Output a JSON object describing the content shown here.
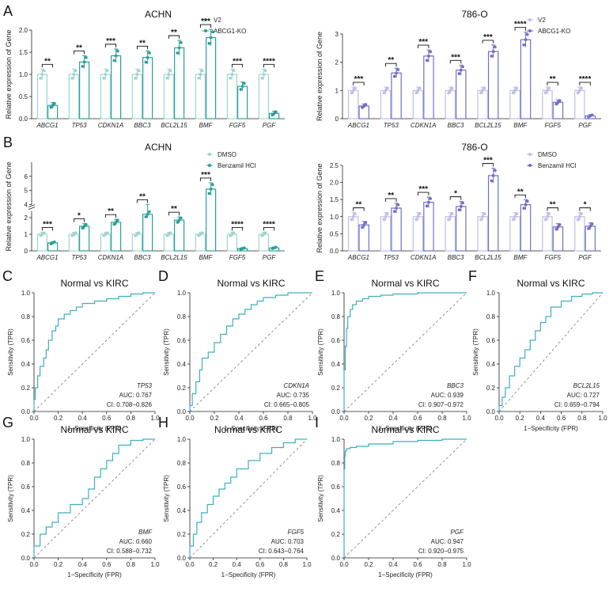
{
  "figure": {
    "rows": {
      "A": [
        {
          "letter": "A",
          "title": "ACHN",
          "ylabel": "Relative expression of Gene",
          "ylim": [
            0,
            2.0
          ],
          "yticks": [
            "0.0",
            "0.5",
            "1.0",
            "1.5",
            "2.0"
          ],
          "color": "#2aa198",
          "legend": [
            "V2",
            "ABCG1-KO"
          ],
          "chart_data": {
            "type": "bar",
            "categories": [
              "ABCG1",
              "TP53",
              "CDKN1A",
              "BBC3",
              "BCL2L15",
              "BMF",
              "FGF5",
              "PGF"
            ],
            "series": [
              {
                "name": "V2",
                "values": [
                  1,
                  1,
                  1,
                  1,
                  1,
                  1,
                  1,
                  1
                ]
              },
              {
                "name": "ABCG1-KO",
                "values": [
                  0.3,
                  1.28,
                  1.42,
                  1.38,
                  1.6,
                  1.83,
                  0.73,
                  0.12
                ]
              }
            ],
            "significance": [
              "**",
              "**",
              "***",
              "**",
              "**",
              "***",
              "***",
              "****"
            ]
          }
        },
        {
          "letter": "",
          "title": "786-O",
          "ylabel": "Relative expression of Gene",
          "ylim": [
            0,
            3
          ],
          "yticks": [
            "0",
            "1",
            "2",
            "3"
          ],
          "color": "#6f6fc8",
          "legend": [
            "V2",
            "ABCG1-KO"
          ],
          "chart_data": {
            "type": "bar",
            "categories": [
              "ABCG1",
              "TP53",
              "CDKN1A",
              "BBC3",
              "BCL2L15",
              "BMF",
              "FGF5",
              "PGF"
            ],
            "series": [
              {
                "name": "V2",
                "values": [
                  1,
                  1,
                  1,
                  1,
                  1,
                  1,
                  1,
                  1
                ]
              },
              {
                "name": "ABCG1-KO",
                "values": [
                  0.45,
                  1.62,
                  2.22,
                  1.72,
                  2.38,
                  2.8,
                  0.58,
                  0.1
                ]
              }
            ],
            "significance": [
              "***",
              "**",
              "***",
              "***",
              "***",
              "****",
              "**",
              "****"
            ]
          }
        }
      ],
      "B": [
        {
          "letter": "B",
          "title": "ACHN",
          "ylabel": "Relative expression of Gene",
          "broken_axis": true,
          "ylim_lower": [
            0,
            2.4
          ],
          "ylim_upper": [
            4,
            7
          ],
          "yticks": [
            "0",
            "1",
            "2",
            "4",
            "5",
            "6"
          ],
          "color": "#2aa198",
          "legend": [
            "DMSO",
            "Benzamil HCl"
          ],
          "chart_data": {
            "type": "bar",
            "categories": [
              "ABCG1",
              "TP53",
              "CDKN1A",
              "BBC3",
              "BCL2L15",
              "BMF",
              "FGF5",
              "PGF"
            ],
            "series": [
              {
                "name": "DMSO",
                "values": [
                  1,
                  1,
                  1,
                  1,
                  1,
                  1,
                  1,
                  1
                ]
              },
              {
                "name": "Benzamil HCl",
                "values": [
                  0.48,
                  1.48,
                  1.72,
                  2.2,
                  1.85,
                  5.1,
                  0.14,
                  0.18
                ]
              }
            ],
            "significance": [
              "***",
              "*",
              "**",
              "**",
              "**",
              "***",
              "****",
              "****"
            ]
          }
        },
        {
          "letter": "",
          "title": "786-O",
          "ylabel": "Relative expression of Gene",
          "ylim": [
            0,
            2.5
          ],
          "yticks": [
            "0.0",
            "0.5",
            "1.0",
            "1.5",
            "2.0",
            "2.5"
          ],
          "color": "#6f6fc8",
          "legend": [
            "DMSO",
            "Benzamil HCl"
          ],
          "chart_data": {
            "type": "bar",
            "categories": [
              "ABCG1",
              "TP53",
              "CDKN1A",
              "BBC3",
              "BCL2L15",
              "BMF",
              "FGF5",
              "PGF"
            ],
            "series": [
              {
                "name": "DMSO",
                "values": [
                  1,
                  1,
                  1,
                  1,
                  1,
                  1,
                  1,
                  1
                ]
              },
              {
                "name": "Benzamil HCl",
                "values": [
                  0.76,
                  1.25,
                  1.42,
                  1.3,
                  2.2,
                  1.35,
                  0.7,
                  0.72
                ]
              }
            ],
            "significance": [
              "**",
              "**",
              "***",
              "*",
              "***",
              "**",
              "**",
              "*"
            ]
          }
        }
      ]
    },
    "roc": {
      "title": "Normal vs KIRC",
      "xlabel": "1−Specificity (FPR)",
      "ylabel": "Sensitivity (TPR)",
      "ticks": [
        "0.0",
        "0.2",
        "0.4",
        "0.6",
        "0.8",
        "1.0"
      ],
      "color": "#3bb0c0",
      "panels": [
        {
          "letter": "C",
          "gene": "TP53",
          "auc": "AUC: 0.767",
          "ci": "CI: 0.708−0.826",
          "chart_data": {
            "type": "line",
            "x": [
              0,
              0.01,
              0.03,
              0.05,
              0.08,
              0.1,
              0.12,
              0.15,
              0.18,
              0.2,
              0.25,
              0.3,
              0.35,
              0.4,
              0.5,
              0.6,
              0.7,
              0.8,
              0.9,
              1.0
            ],
            "y": [
              0,
              0.1,
              0.2,
              0.3,
              0.38,
              0.45,
              0.52,
              0.6,
              0.68,
              0.72,
              0.78,
              0.82,
              0.85,
              0.88,
              0.91,
              0.93,
              0.95,
              0.97,
              0.99,
              1.0
            ]
          }
        },
        {
          "letter": "D",
          "gene": "CDKN1A",
          "auc": "AUC: 0.735",
          "ci": "CI: 0.665−0.805",
          "chart_data": {
            "type": "line",
            "x": [
              0,
              0.02,
              0.05,
              0.08,
              0.1,
              0.15,
              0.2,
              0.25,
              0.3,
              0.35,
              0.4,
              0.45,
              0.5,
              0.55,
              0.6,
              0.7,
              0.8,
              0.9,
              1.0
            ],
            "y": [
              0,
              0.05,
              0.15,
              0.25,
              0.35,
              0.45,
              0.5,
              0.58,
              0.65,
              0.72,
              0.78,
              0.82,
              0.86,
              0.9,
              0.93,
              0.96,
              0.98,
              1.0,
              1.0
            ]
          }
        },
        {
          "letter": "E",
          "gene": "BBC3",
          "auc": "AUC: 0.939",
          "ci": "CI: 0.907−0.972",
          "chart_data": {
            "type": "line",
            "x": [
              0,
              0.01,
              0.02,
              0.03,
              0.05,
              0.07,
              0.1,
              0.15,
              0.2,
              0.3,
              0.4,
              0.5,
              0.6,
              0.8,
              1.0
            ],
            "y": [
              0,
              0.35,
              0.55,
              0.7,
              0.8,
              0.86,
              0.9,
              0.93,
              0.95,
              0.97,
              0.98,
              0.99,
              0.99,
              1.0,
              1.0
            ]
          }
        },
        {
          "letter": "F",
          "gene": "BCL2L15",
          "auc": "AUC: 0.727",
          "ci": "CI: 0.659−0.794",
          "chart_data": {
            "type": "line",
            "x": [
              0,
              0.03,
              0.06,
              0.1,
              0.15,
              0.2,
              0.25,
              0.3,
              0.35,
              0.4,
              0.45,
              0.5,
              0.6,
              0.7,
              0.8,
              0.9,
              1.0
            ],
            "y": [
              0,
              0.05,
              0.12,
              0.2,
              0.3,
              0.38,
              0.45,
              0.52,
              0.6,
              0.68,
              0.75,
              0.8,
              0.88,
              0.93,
              0.97,
              0.99,
              1.0
            ]
          }
        },
        {
          "letter": "G",
          "gene": "BMF",
          "auc": "AUC: 0.660",
          "ci": "CI: 0.588−0.732",
          "chart_data": {
            "type": "line",
            "x": [
              0,
              0.05,
              0.1,
              0.15,
              0.2,
              0.3,
              0.4,
              0.45,
              0.5,
              0.55,
              0.6,
              0.65,
              0.7,
              0.8,
              0.9,
              1.0
            ],
            "y": [
              0,
              0.1,
              0.2,
              0.26,
              0.3,
              0.38,
              0.45,
              0.5,
              0.58,
              0.68,
              0.75,
              0.82,
              0.88,
              0.95,
              0.99,
              1.0
            ]
          }
        },
        {
          "letter": "H",
          "gene": "FGF5",
          "auc": "AUC: 0.703",
          "ci": "CI: 0.643−0.764",
          "chart_data": {
            "type": "line",
            "x": [
              0,
              0.03,
              0.06,
              0.1,
              0.15,
              0.2,
              0.25,
              0.3,
              0.35,
              0.4,
              0.5,
              0.6,
              0.7,
              0.8,
              0.9,
              1.0
            ],
            "y": [
              0,
              0.1,
              0.2,
              0.3,
              0.38,
              0.45,
              0.52,
              0.58,
              0.63,
              0.68,
              0.75,
              0.82,
              0.88,
              0.93,
              0.97,
              1.0
            ]
          }
        },
        {
          "letter": "I",
          "gene": "PGF",
          "auc": "AUC: 0.947",
          "ci": "CI: 0.920−0.975",
          "chart_data": {
            "type": "line",
            "x": [
              0,
              0.005,
              0.01,
              0.02,
              0.05,
              0.1,
              0.2,
              0.4,
              0.6,
              0.8,
              1.0
            ],
            "y": [
              0,
              0.75,
              0.86,
              0.9,
              0.92,
              0.93,
              0.94,
              0.96,
              0.98,
              0.99,
              1.0
            ]
          }
        }
      ]
    }
  }
}
